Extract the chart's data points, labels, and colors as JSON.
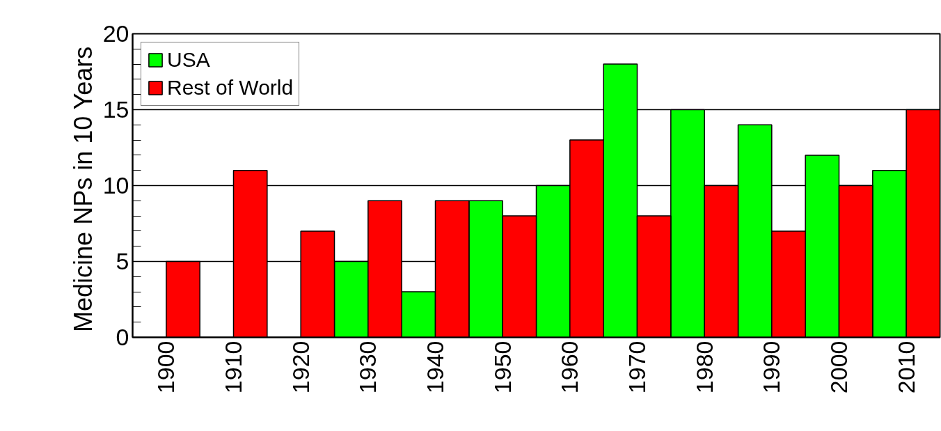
{
  "chart_data": {
    "type": "bar",
    "ylabel": "Medicine NPs in 10  Years",
    "categories": [
      "1900",
      "1910",
      "1920",
      "1930",
      "1940",
      "1950",
      "1960",
      "1970",
      "1980",
      "1990",
      "2000",
      "2010"
    ],
    "series": [
      {
        "name": "USA",
        "color": "#00ff00",
        "values": [
          null,
          null,
          null,
          5,
          3,
          9,
          10,
          18,
          15,
          14,
          12,
          11
        ]
      },
      {
        "name": "Rest of World",
        "color": "#ff0000",
        "values": [
          5,
          11,
          7,
          9,
          9,
          8,
          13,
          8,
          10,
          7,
          10,
          15
        ]
      }
    ],
    "ylim": [
      0,
      20
    ],
    "yticks": [
      0,
      {
        "value": 1,
        "label": null
      },
      {
        "value": 2,
        "label": null
      },
      {
        "value": 3,
        "label": null
      },
      {
        "value": 4,
        "label": null
      },
      5,
      {
        "value": 6,
        "label": null
      },
      {
        "value": 7,
        "label": null
      },
      {
        "value": 8,
        "label": null
      },
      {
        "value": 9,
        "label": null
      },
      10,
      {
        "value": 11,
        "label": null
      },
      {
        "value": 12,
        "label": null
      },
      {
        "value": 13,
        "label": null
      },
      {
        "value": 14,
        "label": null
      },
      15,
      {
        "value": 16,
        "label": null
      },
      {
        "value": 17,
        "label": null
      },
      {
        "value": 18,
        "label": null
      },
      {
        "value": 19,
        "label": null
      },
      20
    ],
    "grid": "y",
    "legend": "top left"
  }
}
